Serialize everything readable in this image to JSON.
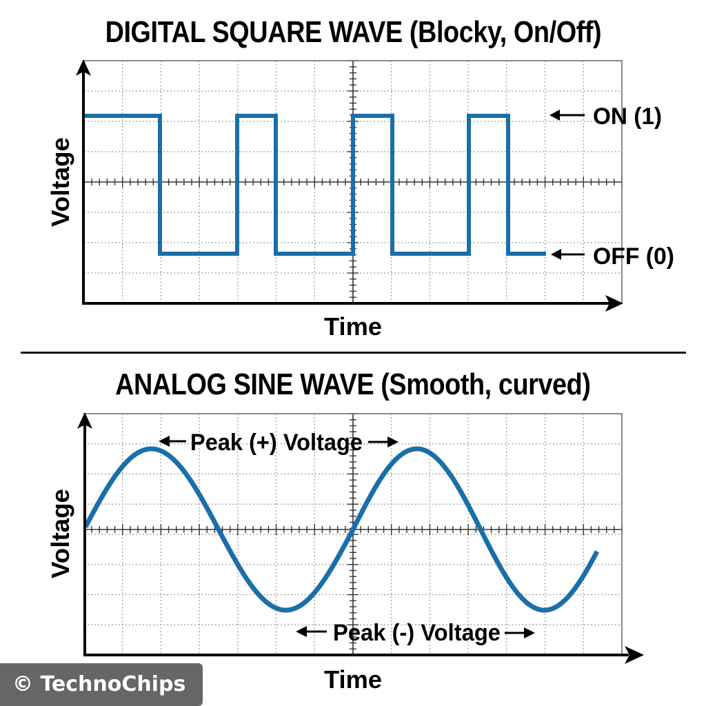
{
  "colors": {
    "wave": "#1a6fa8",
    "axis": "#000000",
    "grid": "#9a9a9a",
    "border": "#666666",
    "watermark_bg": "#666666",
    "watermark_text": "#ffffff"
  },
  "top_chart": {
    "title_main": "DIGITAL SQUARE WAVE",
    "title_sub": "(Blocky, On/Off)",
    "xlabel": "Time",
    "ylabel": "Voltage",
    "annotations": {
      "on": "ON (1)",
      "off": "OFF (0)"
    }
  },
  "bottom_chart": {
    "title_main": "ANALOG SINE WAVE",
    "title_sub": "(Smooth, curved)",
    "xlabel": "Time",
    "ylabel": "Voltage",
    "annotations": {
      "peak_pos": "Peak (+) Voltage",
      "peak_neg": "Peak (-) Voltage"
    }
  },
  "watermark": {
    "text": "© TechnoChips"
  },
  "chart_data": [
    {
      "type": "line",
      "title": "DIGITAL SQUARE WAVE (Blocky, On/Off)",
      "xlabel": "Time",
      "ylabel": "Voltage",
      "grid": true,
      "legend": null,
      "grid_divisions": {
        "x": 14,
        "y": 8
      },
      "ylim": [
        -1,
        1
      ],
      "levels": {
        "ON (1)": 1,
        "OFF (0)": 0
      },
      "series": [
        {
          "name": "square_wave",
          "step": true,
          "x": [
            0,
            2,
            2,
            4,
            4,
            5,
            5,
            7,
            7,
            8,
            8,
            10,
            10,
            11,
            11,
            12
          ],
          "values": [
            1,
            1,
            0,
            0,
            1,
            1,
            0,
            0,
            1,
            1,
            0,
            0,
            1,
            1,
            0,
            0
          ]
        }
      ],
      "annotations": [
        "ON (1)",
        "OFF (0)"
      ]
    },
    {
      "type": "line",
      "title": "ANALOG SINE WAVE (Smooth, curved)",
      "xlabel": "Time",
      "ylabel": "Voltage",
      "grid": true,
      "legend": null,
      "grid_divisions": {
        "x": 14,
        "y": 8
      },
      "ylim": [
        -1,
        1
      ],
      "series": [
        {
          "name": "sine_wave",
          "x": [
            0,
            1,
            2,
            3,
            3.5,
            5,
            7,
            7.2,
            9,
            10.8,
            12,
            13.4
          ],
          "values": [
            0,
            0.75,
            1,
            0.6,
            0,
            -0.9,
            0,
            0.05,
            1,
            -1,
            -0.2,
            0
          ]
        }
      ],
      "cycles": 2,
      "peaks": [
        {
          "label": "Peak (+) Voltage",
          "value": 1
        }
      ],
      "troughs": [
        {
          "label": "Peak (-) Voltage",
          "value": -1
        }
      ],
      "annotations": [
        "Peak (+) Voltage",
        "Peak (-) Voltage"
      ]
    }
  ]
}
